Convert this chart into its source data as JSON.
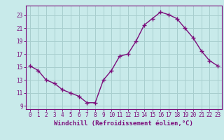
{
  "x": [
    0,
    1,
    2,
    3,
    4,
    5,
    6,
    7,
    8,
    9,
    10,
    11,
    12,
    13,
    14,
    15,
    16,
    17,
    18,
    19,
    20,
    21,
    22,
    23
  ],
  "y": [
    15.2,
    14.5,
    13.0,
    12.5,
    11.5,
    11.0,
    10.5,
    9.5,
    9.5,
    13.0,
    14.5,
    16.7,
    17.0,
    19.0,
    21.5,
    22.5,
    23.5,
    23.1,
    22.5,
    21.0,
    19.5,
    17.5,
    16.0,
    15.2
  ],
  "line_color": "#7b0d7b",
  "marker": "+",
  "background_color": "#c8eaea",
  "grid_color": "#a8cece",
  "xlabel": "Windchill (Refroidissement éolien,°C)",
  "xlim": [
    -0.5,
    23.5
  ],
  "ylim": [
    8.5,
    24.5
  ],
  "yticks": [
    9,
    11,
    13,
    15,
    17,
    19,
    21,
    23
  ],
  "xticks": [
    0,
    1,
    2,
    3,
    4,
    5,
    6,
    7,
    8,
    9,
    10,
    11,
    12,
    13,
    14,
    15,
    16,
    17,
    18,
    19,
    20,
    21,
    22,
    23
  ],
  "tick_color": "#7b0d7b",
  "marker_size": 4,
  "line_width": 1.0,
  "xlabel_fontsize": 6.5,
  "tick_fontsize": 5.5
}
